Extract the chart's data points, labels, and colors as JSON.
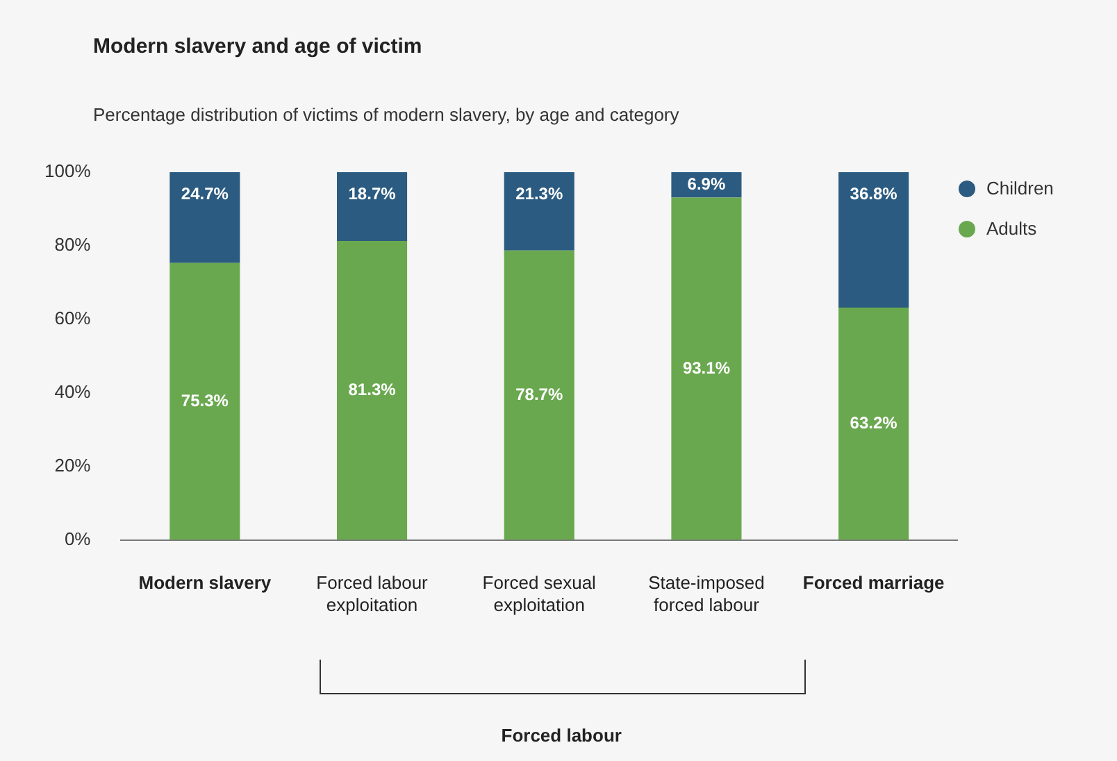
{
  "chart_data": {
    "type": "bar",
    "title": "Modern slavery and age of victim",
    "subtitle": "Percentage distribution of victims of modern slavery, by age and category",
    "categories": [
      "Modern slavery",
      "Forced labour exploitation",
      "Forced sexual exploitation",
      "State-imposed forced labour",
      "Forced marriage"
    ],
    "stacked": true,
    "ylim": [
      0,
      100
    ],
    "yticks": [
      {
        "value": 0,
        "label": "0%"
      },
      {
        "value": 20,
        "label": "20%"
      },
      {
        "value": 40,
        "label": "40%"
      },
      {
        "value": 60,
        "label": "60%"
      },
      {
        "value": 80,
        "label": "80%"
      },
      {
        "value": 100,
        "label": "100%"
      }
    ],
    "series": [
      {
        "name": "Adults",
        "color": "#6aa84f",
        "values": [
          75.3,
          81.3,
          78.7,
          93.1,
          63.2
        ],
        "value_labels": [
          "75.3%",
          "81.3%",
          "78.7%",
          "93.1%",
          "63.2%"
        ]
      },
      {
        "name": "Children",
        "color": "#2b5b80",
        "values": [
          24.7,
          18.7,
          21.3,
          6.9,
          36.8
        ],
        "value_labels": [
          "24.7%",
          "18.7%",
          "21.3%",
          "6.9%",
          "36.8%"
        ]
      }
    ],
    "legend": "top right",
    "grid": false,
    "annotations": [
      "Forced labour"
    ]
  }
}
